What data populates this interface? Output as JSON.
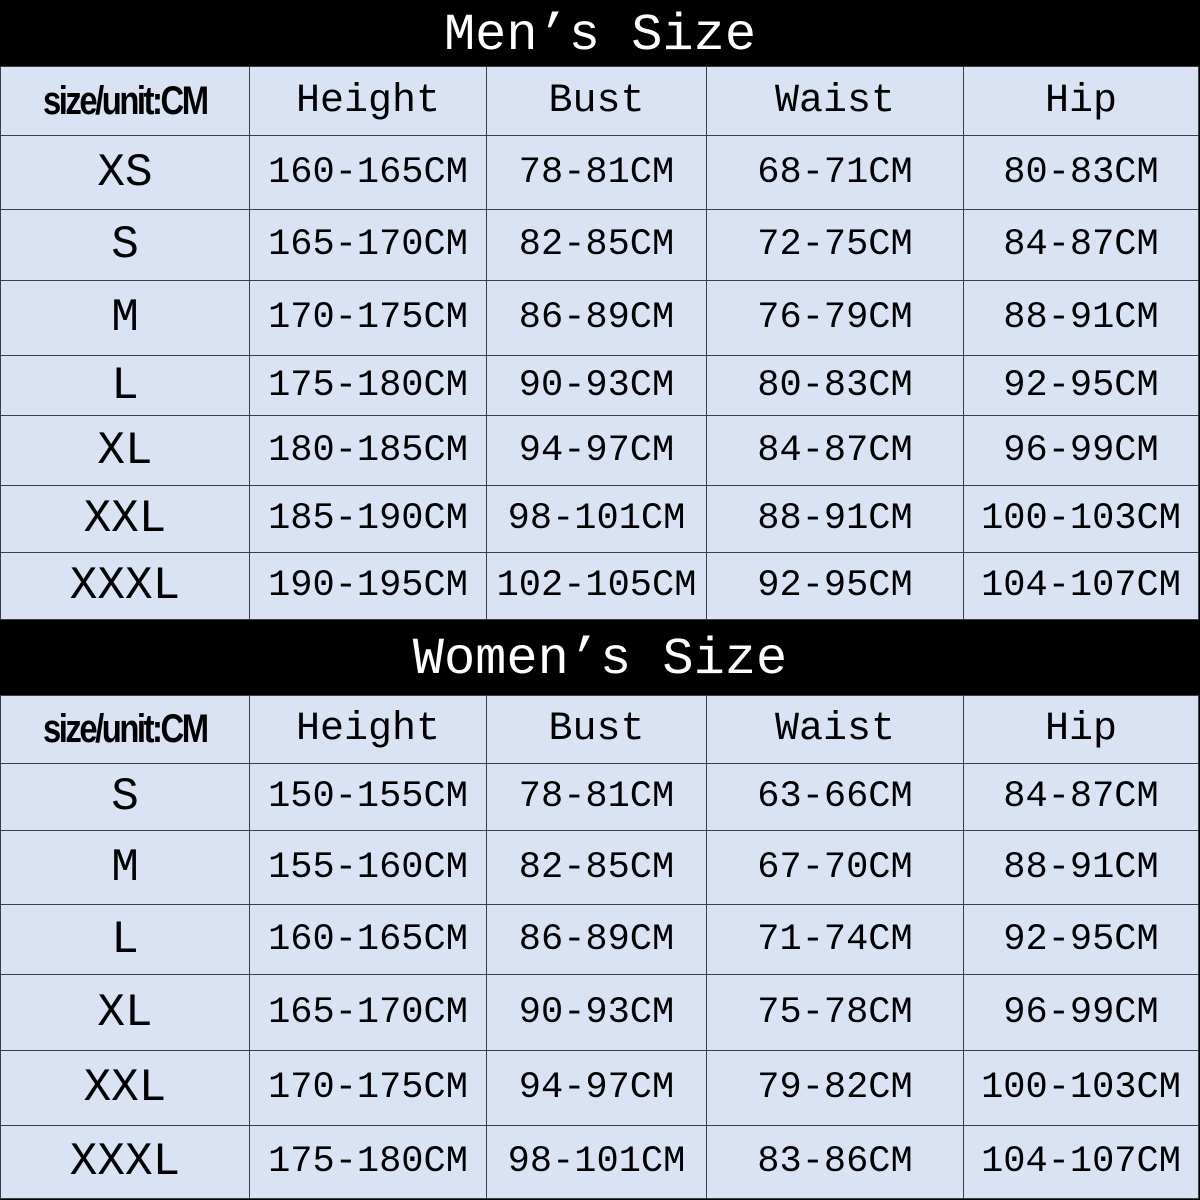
{
  "colors": {
    "cell_bg": "#dae3f3",
    "title_bg": "#000000",
    "title_text": "#ffffff"
  },
  "tables": [
    {
      "title": "Men’s Size",
      "headers": [
        "size/unit:CM",
        "Height",
        "Bust",
        "Waist",
        "Hip"
      ],
      "rows": [
        [
          "XS",
          "160-165CM",
          "78-81CM",
          "68-71CM",
          "80-83CM"
        ],
        [
          "S",
          "165-170CM",
          "82-85CM",
          "72-75CM",
          "84-87CM"
        ],
        [
          "M",
          "170-175CM",
          "86-89CM",
          "76-79CM",
          "88-91CM"
        ],
        [
          "L",
          "175-180CM",
          "90-93CM",
          "80-83CM",
          "92-95CM"
        ],
        [
          "XL",
          "180-185CM",
          "94-97CM",
          "84-87CM",
          "96-99CM"
        ],
        [
          "XXL",
          "185-190CM",
          "98-101CM",
          "88-91CM",
          "100-103CM"
        ],
        [
          "XXXL",
          "190-195CM",
          "102-105CM",
          "92-95CM",
          "104-107CM"
        ]
      ]
    },
    {
      "title": "Women’s Size",
      "headers": [
        "size/unit:CM",
        "Height",
        "Bust",
        "Waist",
        "Hip"
      ],
      "rows": [
        [
          "S",
          "150-155CM",
          "78-81CM",
          "63-66CM",
          "84-87CM"
        ],
        [
          "M",
          "155-160CM",
          "82-85CM",
          "67-70CM",
          "88-91CM"
        ],
        [
          "L",
          "160-165CM",
          "86-89CM",
          "71-74CM",
          "92-95CM"
        ],
        [
          "XL",
          "165-170CM",
          "90-93CM",
          "75-78CM",
          "96-99CM"
        ],
        [
          "XXL",
          "170-175CM",
          "94-97CM",
          "79-82CM",
          "100-103CM"
        ],
        [
          "XXXL",
          "175-180CM",
          "98-101CM",
          "83-86CM",
          "104-107CM"
        ]
      ]
    }
  ]
}
